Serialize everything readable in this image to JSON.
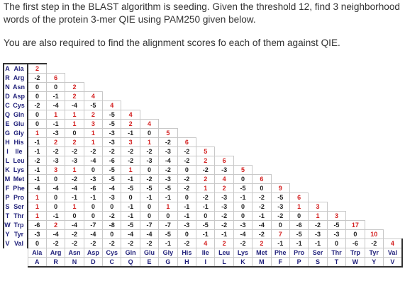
{
  "question": {
    "line1": "The first step in the BLAST algorithm is seeding.  Given the threshold 12, find 3 neighborhood words of the protein 3-mer QIE using PAM250 given below.",
    "line2": "You are also required to find the alignment scores fo each of them against QIE."
  },
  "matrix": {
    "rows": [
      {
        "l": "A",
        "a": "Ala",
        "v": [
          "2"
        ]
      },
      {
        "l": "R",
        "a": "Arg",
        "v": [
          "-2",
          "6"
        ]
      },
      {
        "l": "N",
        "a": "Asn",
        "v": [
          "0",
          "0",
          "2"
        ]
      },
      {
        "l": "D",
        "a": "Asp",
        "v": [
          "0",
          "-1",
          "2",
          "4"
        ]
      },
      {
        "l": "C",
        "a": "Cys",
        "v": [
          "-2",
          "-4",
          "-4",
          "-5",
          "4"
        ]
      },
      {
        "l": "Q",
        "a": "Gln",
        "v": [
          "0",
          "1",
          "1",
          "2",
          "-5",
          "4"
        ]
      },
      {
        "l": "E",
        "a": "Glu",
        "v": [
          "0",
          "-1",
          "1",
          "3",
          "-5",
          "2",
          "4"
        ]
      },
      {
        "l": "G",
        "a": "Gly",
        "v": [
          "1",
          "-3",
          "0",
          "1",
          "-3",
          "-1",
          "0",
          "5"
        ]
      },
      {
        "l": "H",
        "a": "His",
        "v": [
          "-1",
          "2",
          "2",
          "1",
          "-3",
          "3",
          "1",
          "-2",
          "6"
        ]
      },
      {
        "l": "I",
        "a": "Ile",
        "v": [
          "-1",
          "-2",
          "-2",
          "-2",
          "-2",
          "-2",
          "-2",
          "-3",
          "-2",
          "5"
        ]
      },
      {
        "l": "L",
        "a": "Leu",
        "v": [
          "-2",
          "-3",
          "-3",
          "-4",
          "-6",
          "-2",
          "-3",
          "-4",
          "-2",
          "2",
          "6"
        ]
      },
      {
        "l": "K",
        "a": "Lys",
        "v": [
          "-1",
          "3",
          "1",
          "0",
          "-5",
          "1",
          "0",
          "-2",
          "0",
          "-2",
          "-3",
          "5"
        ]
      },
      {
        "l": "M",
        "a": "Met",
        "v": [
          "-1",
          "0",
          "-2",
          "-3",
          "-5",
          "-1",
          "-2",
          "-3",
          "-2",
          "2",
          "4",
          "0",
          "6"
        ]
      },
      {
        "l": "F",
        "a": "Phe",
        "v": [
          "-4",
          "-4",
          "-4",
          "-6",
          "-4",
          "-5",
          "-5",
          "-5",
          "-2",
          "1",
          "2",
          "-5",
          "0",
          "9"
        ]
      },
      {
        "l": "P",
        "a": "Pro",
        "v": [
          "1",
          "0",
          "-1",
          "-1",
          "-3",
          "0",
          "-1",
          "-1",
          "0",
          "-2",
          "-3",
          "-1",
          "-2",
          "-5",
          "6"
        ]
      },
      {
        "l": "S",
        "a": "Ser",
        "v": [
          "1",
          "0",
          "1",
          "0",
          "0",
          "-1",
          "0",
          "1",
          "-1",
          "-1",
          "-3",
          "0",
          "-2",
          "-3",
          "1",
          "3"
        ]
      },
      {
        "l": "T",
        "a": "Thr",
        "v": [
          "1",
          "-1",
          "0",
          "0",
          "-2",
          "-1",
          "0",
          "0",
          "-1",
          "0",
          "-2",
          "0",
          "-1",
          "-2",
          "0",
          "1",
          "3"
        ]
      },
      {
        "l": "W",
        "a": "Trp",
        "v": [
          "-6",
          "2",
          "-4",
          "-7",
          "-8",
          "-5",
          "-7",
          "-7",
          "-3",
          "-5",
          "-2",
          "-3",
          "-4",
          "0",
          "-6",
          "-2",
          "-5",
          "17"
        ]
      },
      {
        "l": "Y",
        "a": "Tyr",
        "v": [
          "-3",
          "-4",
          "-2",
          "-4",
          "0",
          "-4",
          "-4",
          "-5",
          "0",
          "-1",
          "-1",
          "-4",
          "-2",
          "7",
          "-5",
          "-3",
          "-3",
          "0",
          "10"
        ]
      },
      {
        "l": "V",
        "a": "Val",
        "v": [
          "0",
          "-2",
          "-2",
          "-2",
          "-2",
          "-2",
          "-2",
          "-1",
          "-2",
          "4",
          "2",
          "-2",
          "2",
          "-1",
          "-1",
          "-1",
          "0",
          "-6",
          "-2",
          "4"
        ]
      }
    ],
    "col_abbr": [
      "Ala",
      "Arg",
      "Asn",
      "Asp",
      "Cys",
      "Gln",
      "Glu",
      "Gly",
      "His",
      "Ile",
      "Leu",
      "Lys",
      "Met",
      "Phe",
      "Pro",
      "Ser",
      "Thr",
      "Trp",
      "Tyr",
      "Val"
    ],
    "col_letters": [
      "A",
      "R",
      "N",
      "D",
      "C",
      "Q",
      "E",
      "G",
      "H",
      "I",
      "L",
      "K",
      "M",
      "F",
      "P",
      "S",
      "T",
      "W",
      "Y",
      "V"
    ]
  }
}
